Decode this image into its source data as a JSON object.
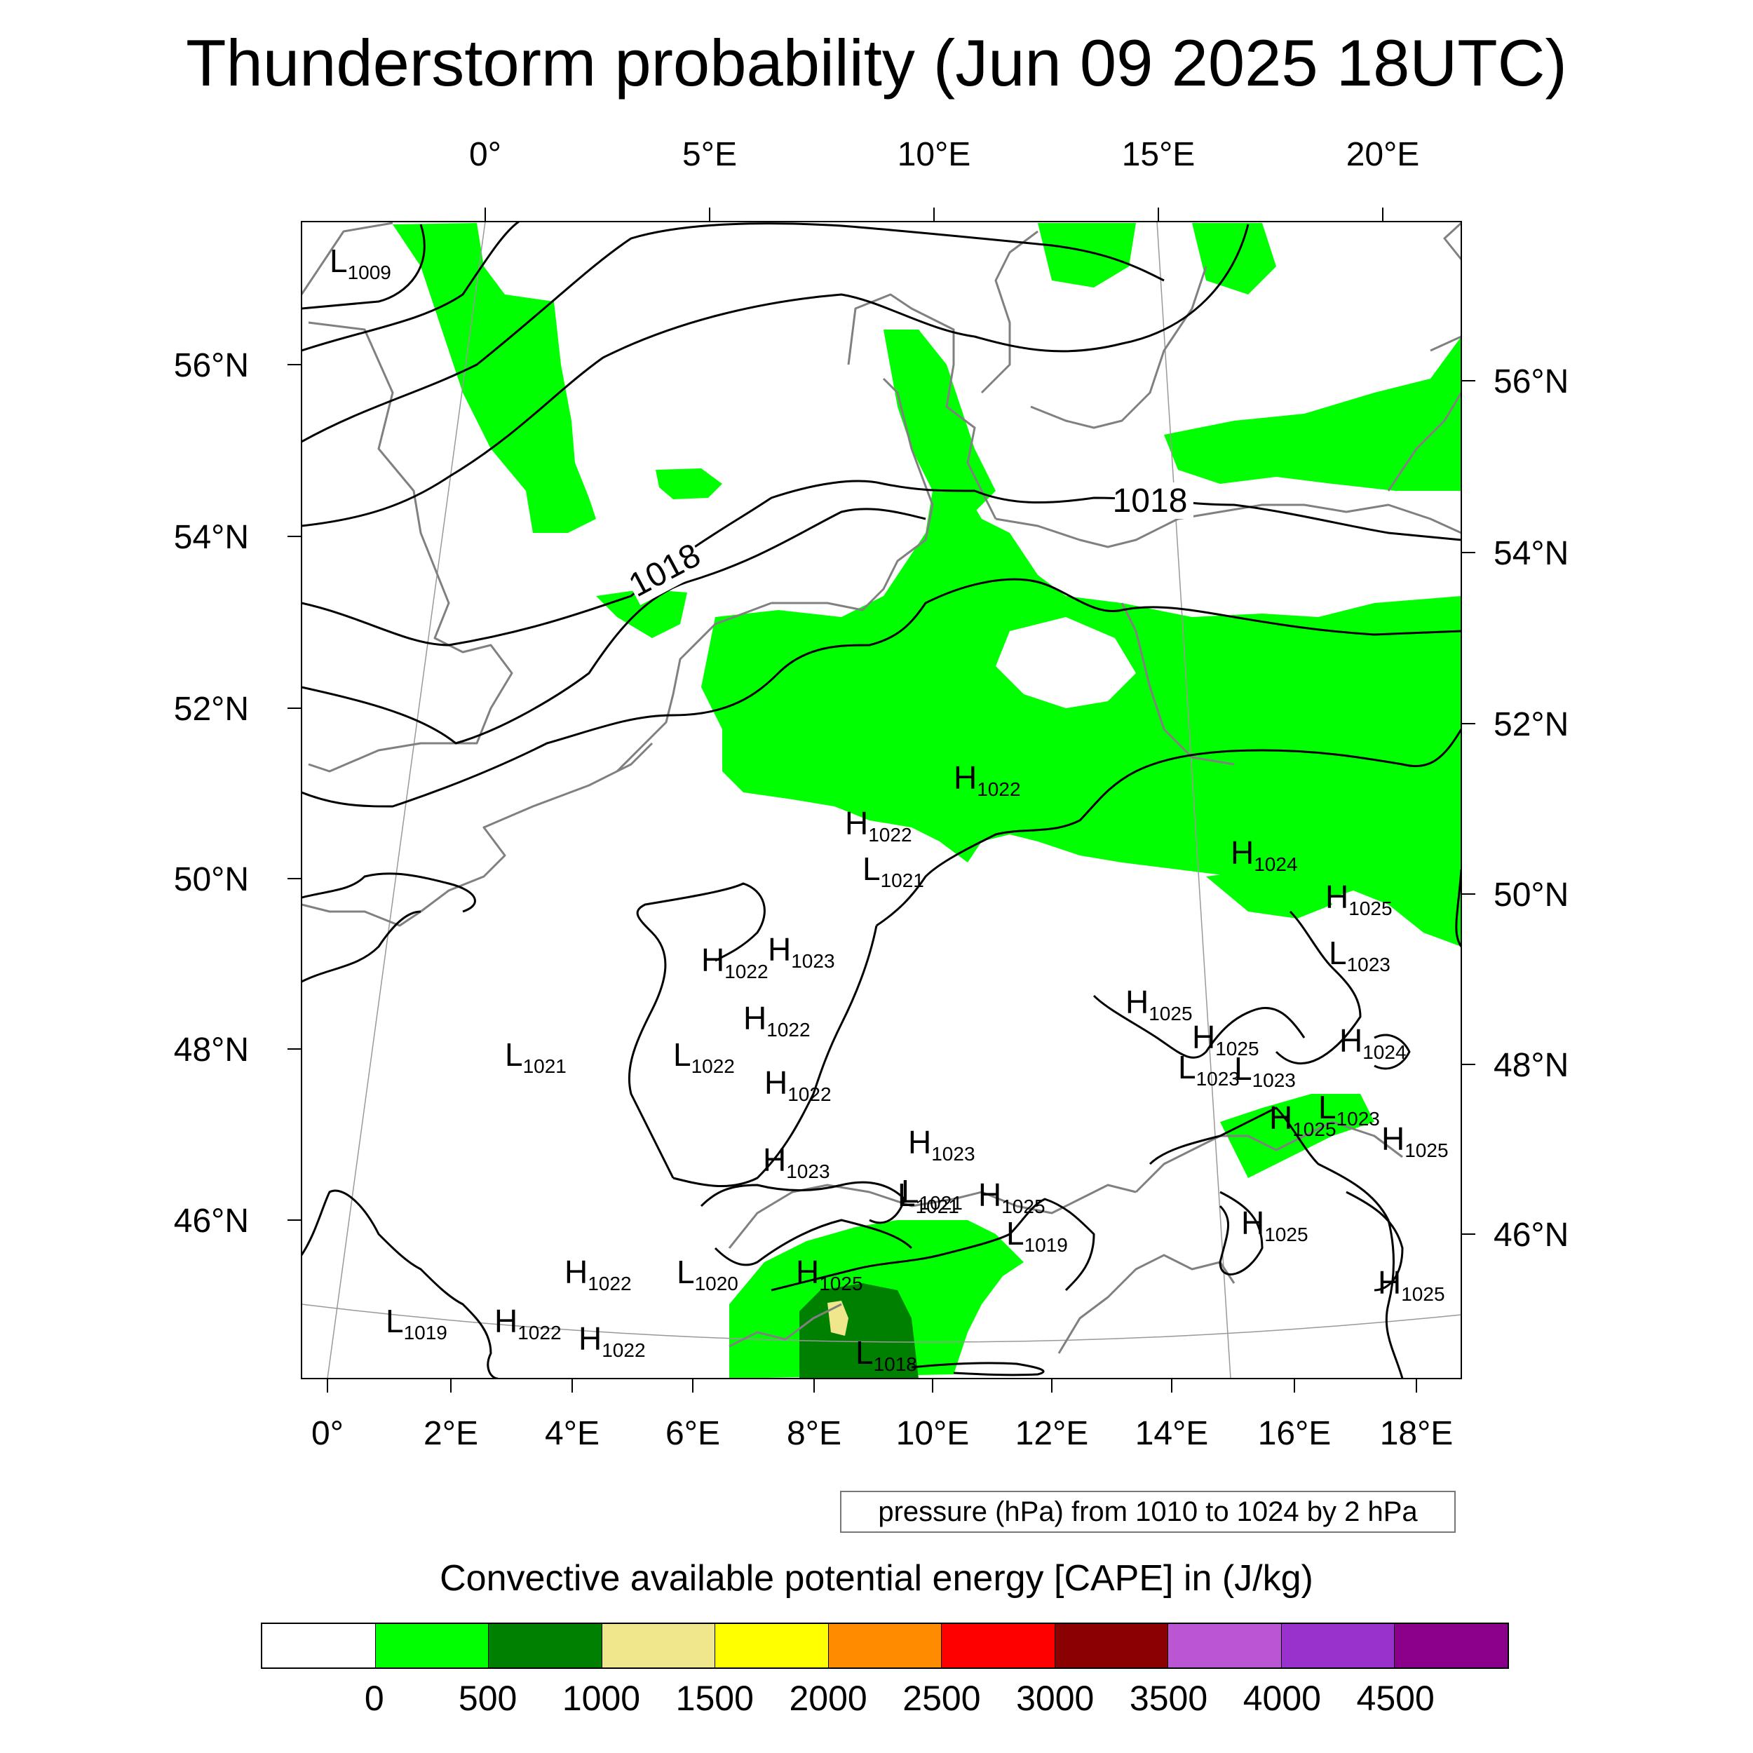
{
  "title": "Thunderstorm probability (Jun 09 2025 18UTC)",
  "map": {
    "top_lon_labels": [
      "0°",
      "5°E",
      "10°E",
      "15°E",
      "20°E"
    ],
    "bottom_lon_labels": [
      "0°",
      "2°E",
      "4°E",
      "6°E",
      "8°E",
      "10°E",
      "12°E",
      "14°E",
      "16°E",
      "18°E"
    ],
    "left_lat_labels": [
      "56°N",
      "54°N",
      "52°N",
      "50°N",
      "48°N",
      "46°N"
    ],
    "right_lat_labels": [
      "56°N",
      "54°N",
      "52°N",
      "50°N",
      "48°N",
      "46°N"
    ],
    "isobar_labels": [
      "1018",
      "1018"
    ],
    "pressure_centers": [
      {
        "letter": "L",
        "value": "1009"
      },
      {
        "letter": "H",
        "value": "1022"
      },
      {
        "letter": "H",
        "value": "1022"
      },
      {
        "letter": "L",
        "value": "1021"
      },
      {
        "letter": "H",
        "value": "1024"
      },
      {
        "letter": "H",
        "value": "1025"
      },
      {
        "letter": "L",
        "value": "1023"
      },
      {
        "letter": "H",
        "value": "1022"
      },
      {
        "letter": "H",
        "value": "1023"
      },
      {
        "letter": "H",
        "value": "1022"
      },
      {
        "letter": "L",
        "value": "1022"
      },
      {
        "letter": "L",
        "value": "1021"
      },
      {
        "letter": "H",
        "value": "1022"
      },
      {
        "letter": "H",
        "value": "1023"
      },
      {
        "letter": "H",
        "value": "1025"
      },
      {
        "letter": "H",
        "value": "1025"
      },
      {
        "letter": "H",
        "value": "1024"
      },
      {
        "letter": "L",
        "value": "1023"
      },
      {
        "letter": "L",
        "value": "1023"
      },
      {
        "letter": "H",
        "value": "1025"
      },
      {
        "letter": "L",
        "value": "1023"
      },
      {
        "letter": "H",
        "value": "1025"
      },
      {
        "letter": "H",
        "value": "1023"
      },
      {
        "letter": "L",
        "value": "1021"
      },
      {
        "letter": "L",
        "value": "1021"
      },
      {
        "letter": "H",
        "value": "1025"
      },
      {
        "letter": "L",
        "value": "1019"
      },
      {
        "letter": "H",
        "value": "1025"
      },
      {
        "letter": "H",
        "value": "1025"
      },
      {
        "letter": "H",
        "value": "1022"
      },
      {
        "letter": "L",
        "value": "1020"
      },
      {
        "letter": "H",
        "value": "1025"
      },
      {
        "letter": "L",
        "value": "1019"
      },
      {
        "letter": "H",
        "value": "1022"
      },
      {
        "letter": "H",
        "value": "1022"
      },
      {
        "letter": "L",
        "value": "1018"
      }
    ]
  },
  "contour_info": "pressure (hPa) from 1010 to 1024 by 2 hPa",
  "colorbar": {
    "title": "Convective available potential energy [CAPE] in (J/kg)",
    "colors": [
      "#ffffff",
      "#00ff00",
      "#008000",
      "#f0e68c",
      "#ffff00",
      "#ff8c00",
      "#ff0000",
      "#8b0000",
      "#ba55d3",
      "#9932cc",
      "#8b008b"
    ],
    "tick_labels": [
      "0",
      "500",
      "1000",
      "1500",
      "2000",
      "2500",
      "3000",
      "3500",
      "4000",
      "4500"
    ]
  }
}
